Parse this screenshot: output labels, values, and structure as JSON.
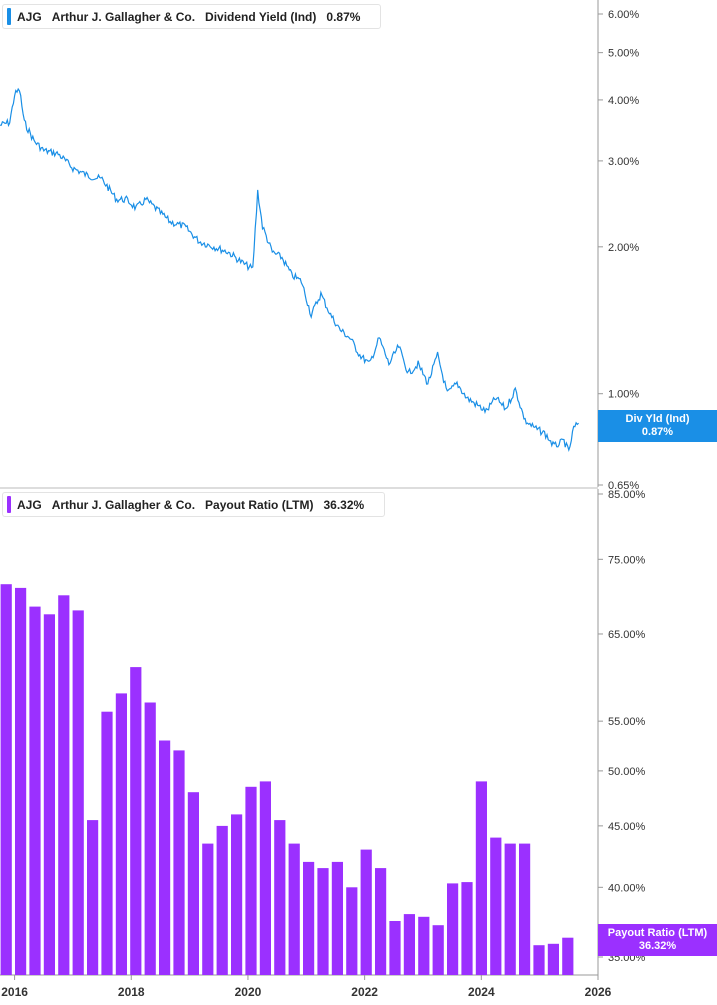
{
  "colors": {
    "yield_line": "#1a8fe6",
    "payout_bar": "#9b30ff",
    "axis": "#999999"
  },
  "top_panel": {
    "ticker": "AJG",
    "company": "Arthur J. Gallagher & Co.",
    "metric": "Dividend Yield (Ind)",
    "value": "0.87%",
    "badge_label": "Div Yld (Ind)",
    "badge_value": "0.87%"
  },
  "bottom_panel": {
    "ticker": "AJG",
    "company": "Arthur J. Gallagher & Co.",
    "metric": "Payout Ratio (LTM)",
    "value": "36.32%",
    "badge_label": "Payout Ratio (LTM)",
    "badge_value": "36.32%"
  },
  "chart_data": [
    {
      "type": "line",
      "series_name": "Dividend Yield (Ind)",
      "y_scale": "log",
      "ylim": [
        0.65,
        6.3
      ],
      "y_ticks": [
        "6.00%",
        "5.00%",
        "4.00%",
        "3.00%",
        "2.00%",
        "1.00%",
        "0.65%"
      ],
      "y_tick_values": [
        6.0,
        5.0,
        4.0,
        3.0,
        2.0,
        1.0,
        0.65
      ],
      "x_range": [
        "2015-10",
        "2026-01"
      ],
      "points": [
        [
          "2015-10",
          3.55
        ],
        [
          "2015-12",
          3.6
        ],
        [
          "2016-01",
          4.1
        ],
        [
          "2016-02",
          4.2
        ],
        [
          "2016-03",
          3.6
        ],
        [
          "2016-05",
          3.3
        ],
        [
          "2016-07",
          3.15
        ],
        [
          "2016-10",
          3.1
        ],
        [
          "2017-01",
          2.9
        ],
        [
          "2017-04",
          2.8
        ],
        [
          "2017-07",
          2.75
        ],
        [
          "2017-10",
          2.5
        ],
        [
          "2017-12",
          2.5
        ],
        [
          "2018-02",
          2.4
        ],
        [
          "2018-04",
          2.5
        ],
        [
          "2018-06",
          2.4
        ],
        [
          "2018-09",
          2.25
        ],
        [
          "2018-12",
          2.2
        ],
        [
          "2019-03",
          2.05
        ],
        [
          "2019-06",
          2.0
        ],
        [
          "2019-09",
          1.95
        ],
        [
          "2019-12",
          1.85
        ],
        [
          "2020-02",
          1.8
        ],
        [
          "2020-03",
          2.6
        ],
        [
          "2020-04",
          2.2
        ],
        [
          "2020-06",
          1.95
        ],
        [
          "2020-08",
          1.9
        ],
        [
          "2020-10",
          1.75
        ],
        [
          "2020-12",
          1.7
        ],
        [
          "2021-02",
          1.45
        ],
        [
          "2021-04",
          1.6
        ],
        [
          "2021-06",
          1.45
        ],
        [
          "2021-08",
          1.35
        ],
        [
          "2021-10",
          1.3
        ],
        [
          "2021-12",
          1.2
        ],
        [
          "2022-02",
          1.15
        ],
        [
          "2022-04",
          1.3
        ],
        [
          "2022-06",
          1.15
        ],
        [
          "2022-08",
          1.25
        ],
        [
          "2022-10",
          1.1
        ],
        [
          "2022-12",
          1.15
        ],
        [
          "2023-02",
          1.05
        ],
        [
          "2023-04",
          1.2
        ],
        [
          "2023-06",
          1.0
        ],
        [
          "2023-08",
          1.05
        ],
        [
          "2023-10",
          0.98
        ],
        [
          "2023-12",
          0.95
        ],
        [
          "2024-02",
          0.92
        ],
        [
          "2024-04",
          0.98
        ],
        [
          "2024-06",
          0.93
        ],
        [
          "2024-08",
          1.02
        ],
        [
          "2024-10",
          0.88
        ],
        [
          "2024-12",
          0.85
        ],
        [
          "2025-02",
          0.83
        ],
        [
          "2025-04",
          0.78
        ],
        [
          "2025-06",
          0.8
        ],
        [
          "2025-07",
          0.76
        ],
        [
          "2025-08",
          0.85
        ],
        [
          "2025-09",
          0.87
        ]
      ]
    },
    {
      "type": "bar",
      "series_name": "Payout Ratio (LTM)",
      "y_scale": "log",
      "ylim": [
        35.0,
        85.0
      ],
      "y_ticks": [
        "85.00%",
        "75.00%",
        "65.00%",
        "55.00%",
        "50.00%",
        "45.00%",
        "40.00%",
        "35.00%"
      ],
      "y_tick_values": [
        85,
        75,
        65,
        55,
        50,
        45,
        40,
        35
      ],
      "x_ticks": [
        "2016",
        "2018",
        "2020",
        "2022",
        "2024",
        "2026"
      ],
      "values": [
        71.5,
        71.0,
        68.5,
        67.5,
        70.0,
        68.0,
        45.5,
        56.0,
        58.0,
        61.0,
        57.0,
        53.0,
        52.0,
        48.0,
        43.5,
        45.0,
        46.0,
        48.5,
        49.0,
        45.5,
        43.5,
        42.0,
        41.5,
        42.0,
        40.0,
        43.0,
        41.5,
        37.5,
        38.0,
        37.8,
        37.2,
        40.3,
        40.4,
        49.0,
        44.0,
        43.5,
        43.5,
        35.8,
        35.9,
        36.32
      ]
    }
  ]
}
